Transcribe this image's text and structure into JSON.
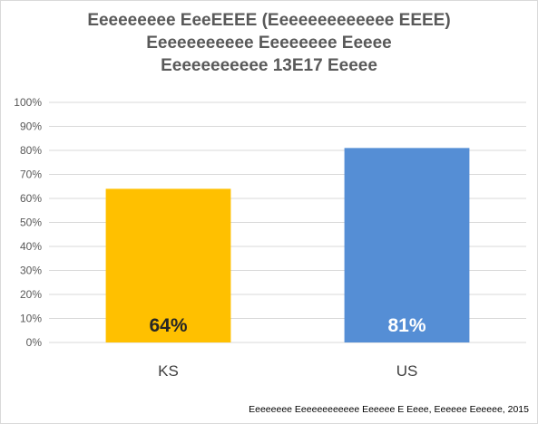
{
  "chart_data": {
    "type": "bar",
    "title_lines": [
      "Eeeeeeeee EeeEEEE (Eeeeeeeeeeeee EEEE)",
      "Eeeeeeeeeee Eeeeeeee Eeeee",
      "Eeeeeeeeeee 13E17 Eeeee"
    ],
    "categories": [
      "KS",
      "US"
    ],
    "values": [
      64,
      81
    ],
    "data_labels": [
      "64%",
      "81%"
    ],
    "colors": [
      "#ffc000",
      "#558ed5"
    ],
    "data_label_colors": [
      "#262626",
      "#ffffff"
    ],
    "ylim": [
      0,
      100
    ],
    "y_ticks": [
      0,
      10,
      20,
      30,
      40,
      50,
      60,
      70,
      80,
      90,
      100
    ],
    "y_tick_labels": [
      "0%",
      "10%",
      "20%",
      "30%",
      "40%",
      "50%",
      "60%",
      "70%",
      "80%",
      "90%",
      "100%"
    ],
    "grid": true,
    "xlabel": "",
    "ylabel": "",
    "source": "Eeeeeeee Eeeeeeeeeeee Eeeeee E Eeee, Eeeeee Eeeeee, 2015"
  }
}
